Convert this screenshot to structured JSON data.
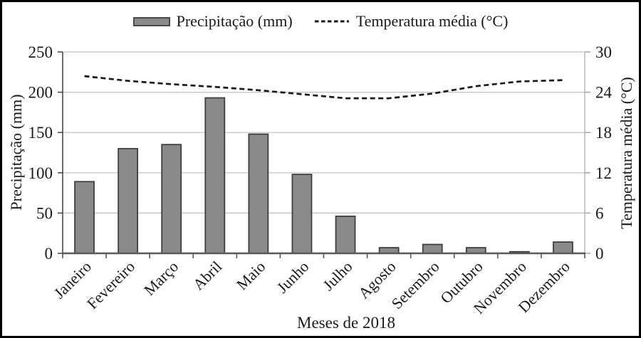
{
  "figure": {
    "background": "#ffffff",
    "border_color": "#000000"
  },
  "legend": {
    "position": "top",
    "items": [
      {
        "label": "Precipitação (mm)",
        "swatch": "bar",
        "color": "#8a8a8a"
      },
      {
        "label": "Temperatura média (°C)",
        "swatch": "dashed-line",
        "color": "#1a1a1a"
      }
    ]
  },
  "chart_data": {
    "type": "bar",
    "subtype": "bar+line-combo",
    "title": "",
    "xlabel": "Meses de 2018",
    "grid": "horizontal",
    "legend_position": "top",
    "categories": [
      "Janeiro",
      "Fevereiro",
      "Março",
      "Abril",
      "Maio",
      "Junho",
      "Julho",
      "Agosto",
      "Setembro",
      "Outubro",
      "Novembro",
      "Dezembro"
    ],
    "series": [
      {
        "name": "Precipitação (mm)",
        "type": "bar",
        "axis": "left",
        "color": "#8a8a8a",
        "border_color": "#3f3f3f",
        "values": [
          89,
          130,
          135,
          193,
          148,
          98,
          46,
          7,
          11,
          7,
          2,
          14
        ]
      },
      {
        "name": "Temperatura média (°C)",
        "type": "line",
        "line_style": "dashed",
        "axis": "right",
        "color": "#1a1a1a",
        "values": [
          26.4,
          25.7,
          25.2,
          24.8,
          24.3,
          23.7,
          23.1,
          23.1,
          23.8,
          24.9,
          25.6,
          25.8
        ]
      }
    ],
    "left_axis": {
      "label": "Precipitação (mm)",
      "min": 0,
      "max": 250,
      "tick_step": 50,
      "ticks": [
        0,
        50,
        100,
        150,
        200,
        250
      ]
    },
    "right_axis": {
      "label": "Temperatura média (°C)",
      "min": 0,
      "max": 30,
      "tick_step": 6,
      "ticks": [
        0,
        6,
        12,
        18,
        24,
        30
      ]
    },
    "colors": {
      "gridline": "#bfbfbf",
      "left_axis_line": "#404040",
      "bottom_axis_line": "#595959",
      "right_axis_line": "#a6a6a6",
      "text": "#1a1a1a"
    }
  }
}
